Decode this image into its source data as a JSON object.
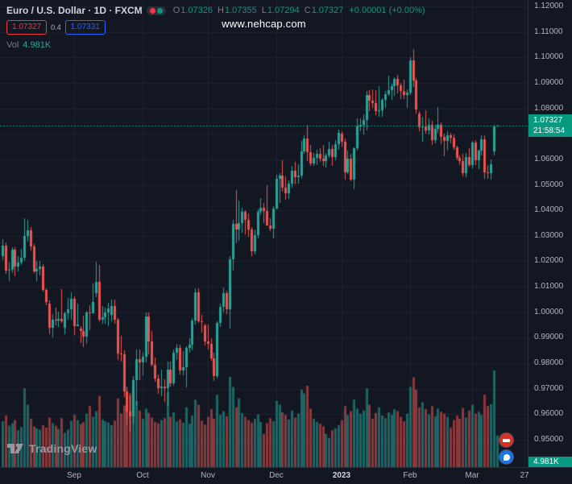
{
  "watermark": "www.nehcap.com",
  "header": {
    "symbol_title": "Euro / U.S. Dollar · 1D · FXCM",
    "ohlc": {
      "open_label": "O",
      "open": "1.07326",
      "high_label": "H",
      "high": "1.07355",
      "low_label": "L",
      "low": "1.07294",
      "close_label": "C",
      "close": "1.07327",
      "change": "+0.00001 (+0.00%)"
    },
    "sell_price": "1.07327",
    "spread": "0.4",
    "buy_price": "1.07331",
    "vol_label": "Vol",
    "vol_value": "4.981K"
  },
  "price_tag": {
    "price": "1.07327",
    "countdown": "21:58:54"
  },
  "volume_tag": "4.981K",
  "logo": {
    "text": "TradingView"
  },
  "colors": {
    "background": "#131722",
    "grid": "#1e2230",
    "up": "#26a69a",
    "down": "#ef5350",
    "vol_up": "rgba(38,166,154,0.55)",
    "vol_down": "rgba(239,83,80,0.55)",
    "accent_green": "#089981",
    "sell_red": "#f23645",
    "buy_blue": "#2962ff",
    "axis_text": "#b2b5be",
    "muted_text": "#787b86",
    "title_text": "#d1d4dc"
  },
  "price_axis_labels": [
    "1.12000",
    "1.11000",
    "1.10000",
    "1.09000",
    "1.08000",
    "1.07000",
    "1.06000",
    "1.05000",
    "1.04000",
    "1.03000",
    "1.02000",
    "1.01000",
    "1.00000",
    "0.99000",
    "0.98000",
    "0.97000",
    "0.96000",
    "0.95000"
  ],
  "time_axis": [
    {
      "label": "Sep",
      "i": 23
    },
    {
      "label": "Oct",
      "i": 45
    },
    {
      "label": "Nov",
      "i": 66
    },
    {
      "label": "Dec",
      "i": 88
    },
    {
      "label": "2023",
      "i": 109,
      "major": true
    },
    {
      "label": "Feb",
      "i": 131
    },
    {
      "label": "Mar",
      "i": 151
    },
    {
      "label": "27",
      "i": 168
    }
  ],
  "chart_data": {
    "type": "candlestick",
    "title": "Euro / U.S. Dollar",
    "interval": "1D",
    "exchange": "FXCM",
    "last_price": 1.07327,
    "visible_price_range": [
      0.945,
      1.125
    ],
    "volume_unit": "K",
    "candle_fields": [
      "open",
      "high",
      "low",
      "close",
      "volume_k"
    ],
    "candles": [
      [
        1.022,
        1.0288,
        1.0205,
        1.026,
        7.2
      ],
      [
        1.026,
        1.0274,
        1.0152,
        1.0165,
        8.1
      ],
      [
        1.0165,
        1.0195,
        1.0123,
        1.0166,
        6.5
      ],
      [
        1.0166,
        1.0255,
        1.0154,
        1.0246,
        6.9
      ],
      [
        1.0246,
        1.0254,
        1.0141,
        1.018,
        7.4
      ],
      [
        1.018,
        1.0221,
        1.0161,
        1.0194,
        5.8
      ],
      [
        1.0194,
        1.0249,
        1.0187,
        1.0213,
        6.3
      ],
      [
        1.0213,
        1.0369,
        1.0202,
        1.0298,
        12.4
      ],
      [
        1.0298,
        1.0364,
        1.0276,
        1.032,
        9.8
      ],
      [
        1.032,
        1.0333,
        1.0241,
        1.0258,
        7.6
      ],
      [
        1.0258,
        1.0268,
        1.0153,
        1.016,
        6.4
      ],
      [
        1.016,
        1.0202,
        1.0124,
        1.0171,
        6.1
      ],
      [
        1.0171,
        1.0203,
        1.0146,
        1.018,
        5.9
      ],
      [
        1.018,
        1.019,
        1.008,
        1.0088,
        6.6
      ],
      [
        1.0088,
        1.0095,
        1.0027,
        1.004,
        6.2
      ],
      [
        1.0034,
        1.0046,
        0.9914,
        0.994,
        7.8
      ],
      [
        0.994,
        0.9994,
        0.9901,
        0.997,
        6.9
      ],
      [
        0.997,
        1.0019,
        0.9948,
        0.9967,
        6.5
      ],
      [
        0.9967,
        1.0003,
        0.9943,
        0.9975,
        6.0
      ],
      [
        0.9975,
        1.009,
        0.9957,
        0.9964,
        7.7
      ],
      [
        0.9938,
        1.0003,
        0.9913,
        0.9997,
        5.4
      ],
      [
        0.9997,
        1.0055,
        0.9972,
        1.0012,
        5.9
      ],
      [
        1.0012,
        1.0079,
        0.9972,
        1.0054,
        7.3
      ],
      [
        1.0054,
        1.0061,
        0.991,
        0.9945,
        8.2
      ],
      [
        0.9945,
        1.0033,
        0.9944,
        0.9952,
        7.4
      ],
      [
        0.9936,
        0.9947,
        0.9878,
        0.9928,
        6.8
      ],
      [
        0.9928,
        0.9987,
        0.9864,
        0.9903,
        7.1
      ],
      [
        0.9903,
        1.0005,
        0.9875,
        0.9998,
        8.4
      ],
      [
        0.9998,
        1.0029,
        0.993,
        0.9996,
        9.6
      ],
      [
        0.9996,
        1.0114,
        0.9995,
        1.004,
        7.9
      ],
      [
        1.0076,
        1.0198,
        1.0059,
        1.012,
        8.8
      ],
      [
        1.012,
        1.0187,
        0.9963,
        0.997,
        11.2
      ],
      [
        0.997,
        1.0023,
        0.9955,
        0.9979,
        7.5
      ],
      [
        0.9979,
        1.0018,
        0.9954,
        1.0,
        7.2
      ],
      [
        1.0,
        1.0036,
        0.9945,
        1.0016,
        7.0
      ],
      [
        0.999,
        1.005,
        0.9965,
        1.0023,
        6.6
      ],
      [
        1.0023,
        1.0051,
        0.9955,
        0.997,
        7.3
      ],
      [
        0.997,
        0.9976,
        0.9813,
        0.9838,
        10.8
      ],
      [
        0.9838,
        0.9908,
        0.9807,
        0.9835,
        8.4
      ],
      [
        0.9835,
        0.9852,
        0.9667,
        0.969,
        9.7
      ],
      [
        0.969,
        0.9709,
        0.9554,
        0.961,
        10.2
      ],
      [
        0.961,
        0.967,
        0.9536,
        0.9593,
        11.6
      ],
      [
        0.9593,
        0.975,
        0.9563,
        0.9735,
        12.8
      ],
      [
        0.9735,
        0.9853,
        0.9634,
        0.9815,
        10.4
      ],
      [
        0.9815,
        0.9853,
        0.9733,
        0.9802,
        8.9
      ],
      [
        0.9802,
        0.9844,
        0.9753,
        0.9826,
        7.6
      ],
      [
        0.9826,
        0.9999,
        0.9803,
        0.9985,
        9.2
      ],
      [
        0.9985,
        0.9999,
        0.9835,
        0.9884,
        8.5
      ],
      [
        0.9884,
        0.9926,
        0.9787,
        0.9794,
        7.8
      ],
      [
        0.9794,
        0.9821,
        0.9726,
        0.974,
        7.1
      ],
      [
        0.974,
        0.9755,
        0.9681,
        0.9703,
        6.9
      ],
      [
        0.9703,
        0.9774,
        0.967,
        0.9707,
        7.4
      ],
      [
        0.9707,
        0.9736,
        0.9649,
        0.9702,
        7.7
      ],
      [
        0.9702,
        0.9807,
        0.9632,
        0.9776,
        11.8
      ],
      [
        0.9776,
        0.9807,
        0.9709,
        0.9721,
        7.9
      ],
      [
        0.9721,
        0.9854,
        0.9712,
        0.984,
        8.6
      ],
      [
        0.984,
        0.9875,
        0.9813,
        0.9859,
        7.2
      ],
      [
        0.9859,
        0.9873,
        0.9756,
        0.9773,
        7.5
      ],
      [
        0.9773,
        0.9847,
        0.9754,
        0.9785,
        7.0
      ],
      [
        0.9785,
        0.9867,
        0.9706,
        0.9861,
        9.4
      ],
      [
        0.9861,
        0.9899,
        0.9842,
        0.9874,
        6.8
      ],
      [
        0.9874,
        0.9976,
        0.985,
        0.9968,
        8.1
      ],
      [
        0.9968,
        1.0093,
        0.9951,
        1.0079,
        10.6
      ],
      [
        1.0079,
        1.0094,
        0.9959,
        0.9966,
        9.8
      ],
      [
        0.9966,
        0.9991,
        0.9921,
        0.9965,
        7.3
      ],
      [
        0.9948,
        0.9954,
        0.9871,
        0.9884,
        6.7
      ],
      [
        0.9884,
        0.9953,
        0.9853,
        0.9877,
        7.9
      ],
      [
        0.9877,
        0.9898,
        0.9811,
        0.9818,
        9.1
      ],
      [
        0.9818,
        0.984,
        0.973,
        0.9749,
        7.6
      ],
      [
        0.9749,
        0.9966,
        0.9741,
        0.9958,
        11.4
      ],
      [
        0.9958,
        1.0034,
        0.9942,
        1.002,
        8.2
      ],
      [
        1.002,
        1.0096,
        0.9999,
        1.0074,
        8.8
      ],
      [
        1.0074,
        1.0086,
        0.9992,
        1.0012,
        8.0
      ],
      [
        1.0012,
        1.0222,
        0.9936,
        1.0209,
        14.2
      ],
      [
        1.0209,
        1.0364,
        1.0163,
        1.0348,
        12.6
      ],
      [
        1.0348,
        1.0481,
        1.0271,
        1.0325,
        9.4
      ],
      [
        1.0325,
        1.0439,
        1.028,
        1.035,
        10.8
      ],
      [
        1.035,
        1.041,
        1.0312,
        1.0393,
        8.5
      ],
      [
        1.0393,
        1.0401,
        1.0305,
        1.0362,
        7.9
      ],
      [
        1.0362,
        1.0388,
        1.0297,
        1.0326,
        7.4
      ],
      [
        1.0326,
        1.0334,
        1.0222,
        1.0239,
        7.0
      ],
      [
        1.0239,
        1.0324,
        1.0226,
        1.0303,
        7.6
      ],
      [
        1.0303,
        1.0405,
        1.029,
        1.0395,
        8.3
      ],
      [
        1.0395,
        1.0448,
        1.0382,
        1.041,
        7.1
      ],
      [
        1.041,
        1.043,
        1.0351,
        1.0397,
        5.2
      ],
      [
        1.0397,
        1.0497,
        1.034,
        1.0342,
        6.9
      ],
      [
        1.0342,
        1.0369,
        1.0319,
        1.0328,
        7.7
      ],
      [
        1.0328,
        1.0416,
        1.029,
        1.0406,
        7.2
      ],
      [
        1.0406,
        1.0539,
        1.0403,
        1.0525,
        10.4
      ],
      [
        1.0525,
        1.0545,
        1.0428,
        1.0535,
        9.8
      ],
      [
        1.0535,
        1.0595,
        1.0474,
        1.049,
        8.6
      ],
      [
        1.049,
        1.0532,
        1.0443,
        1.0468,
        8.2
      ],
      [
        1.0468,
        1.0519,
        1.0444,
        1.0506,
        7.5
      ],
      [
        1.0506,
        1.0573,
        1.0489,
        1.0556,
        8.9
      ],
      [
        1.0556,
        1.0589,
        1.0503,
        1.0531,
        7.8
      ],
      [
        1.0531,
        1.058,
        1.0505,
        1.0538,
        8.4
      ],
      [
        1.0538,
        1.0673,
        1.0528,
        1.0632,
        12.2
      ],
      [
        1.0632,
        1.0695,
        1.0622,
        1.0682,
        11.6
      ],
      [
        1.0682,
        1.0737,
        1.0594,
        1.0627,
        12.8
      ],
      [
        1.0627,
        1.0658,
        1.0575,
        1.0585,
        9.2
      ],
      [
        1.0585,
        1.0625,
        1.0574,
        1.0607,
        7.6
      ],
      [
        1.0607,
        1.0636,
        1.0576,
        1.0622,
        7.1
      ],
      [
        1.0622,
        1.0645,
        1.059,
        1.0604,
        6.8
      ],
      [
        1.0604,
        1.0656,
        1.0573,
        1.0594,
        6.4
      ],
      [
        1.0594,
        1.0625,
        1.0567,
        1.0614,
        5.2
      ],
      [
        1.0614,
        1.067,
        1.0607,
        1.064,
        4.6
      ],
      [
        1.064,
        1.0656,
        1.0575,
        1.061,
        5.8
      ],
      [
        1.061,
        1.0675,
        1.0598,
        1.0661,
        6.1
      ],
      [
        1.0661,
        1.0715,
        1.0638,
        1.0705,
        6.6
      ],
      [
        1.07,
        1.071,
        1.065,
        1.0668,
        7.4
      ],
      [
        1.0668,
        1.0683,
        1.052,
        1.055,
        9.6
      ],
      [
        1.055,
        1.0635,
        1.0542,
        1.0603,
        8.2
      ],
      [
        1.0603,
        1.0621,
        1.0515,
        1.0522,
        8.8
      ],
      [
        1.0522,
        1.0648,
        1.0483,
        1.0645,
        10.6
      ],
      [
        1.0645,
        1.076,
        1.0634,
        1.073,
        9.2
      ],
      [
        1.073,
        1.0761,
        1.0711,
        1.0735,
        8.4
      ],
      [
        1.0735,
        1.0776,
        1.0698,
        1.0756,
        8.9
      ],
      [
        1.0756,
        1.0868,
        1.0714,
        1.0852,
        12.4
      ],
      [
        1.0852,
        1.087,
        1.0788,
        1.083,
        9.8
      ],
      [
        1.083,
        1.0874,
        1.0801,
        1.0822,
        7.6
      ],
      [
        1.0822,
        1.087,
        1.0775,
        1.0789,
        8.5
      ],
      [
        1.0789,
        1.0887,
        1.0766,
        1.0793,
        9.4
      ],
      [
        1.0793,
        1.084,
        1.0766,
        1.0832,
        8.1
      ],
      [
        1.0832,
        1.0868,
        1.0802,
        1.0856,
        7.7
      ],
      [
        1.0856,
        1.0927,
        1.0848,
        1.0871,
        8.6
      ],
      [
        1.0871,
        1.0898,
        1.0835,
        1.0887,
        8.2
      ],
      [
        1.0887,
        1.0923,
        1.085,
        1.0916,
        9.1
      ],
      [
        1.0916,
        1.093,
        1.0858,
        1.0891,
        8.8
      ],
      [
        1.0891,
        1.09,
        1.0837,
        1.0868,
        7.9
      ],
      [
        1.0868,
        1.0913,
        1.0838,
        1.0851,
        7.2
      ],
      [
        1.0851,
        1.0875,
        1.0802,
        1.0863,
        8.4
      ],
      [
        1.0863,
        1.1001,
        1.0852,
        1.0989,
        12.6
      ],
      [
        1.0989,
        1.1033,
        1.0885,
        1.0909,
        14.1
      ],
      [
        1.0909,
        1.0918,
        1.0781,
        1.0795,
        12.2
      ],
      [
        1.078,
        1.0788,
        1.0709,
        1.0725,
        9.4
      ],
      [
        1.0725,
        1.0766,
        1.0669,
        1.0728,
        10.2
      ],
      [
        1.0728,
        1.0791,
        1.0701,
        1.0713,
        9.1
      ],
      [
        1.0713,
        1.0761,
        1.0697,
        1.0736,
        8.3
      ],
      [
        1.0736,
        1.0752,
        1.0656,
        1.0676,
        9.6
      ],
      [
        1.0676,
        1.0736,
        1.0662,
        1.072,
        8.0
      ],
      [
        1.072,
        1.0804,
        1.0705,
        1.0736,
        9.2
      ],
      [
        1.0736,
        1.0744,
        1.0661,
        1.0688,
        8.7
      ],
      [
        1.0688,
        1.07,
        1.0612,
        1.0672,
        8.4
      ],
      [
        1.0672,
        1.071,
        1.0633,
        1.0695,
        7.9
      ],
      [
        1.0695,
        1.0705,
        1.0662,
        1.0686,
        6.2
      ],
      [
        1.0686,
        1.0697,
        1.0636,
        1.0647,
        7.4
      ],
      [
        1.0647,
        1.0654,
        1.0598,
        1.0605,
        8.1
      ],
      [
        1.0605,
        1.0615,
        1.0577,
        1.0594,
        7.6
      ],
      [
        1.0594,
        1.0621,
        1.0533,
        1.0546,
        9.3
      ],
      [
        1.0546,
        1.0626,
        1.0531,
        1.0609,
        7.8
      ],
      [
        1.0609,
        1.0645,
        1.057,
        1.0577,
        8.9
      ],
      [
        1.0577,
        1.0673,
        1.0565,
        1.0666,
        9.8
      ],
      [
        1.0666,
        1.0674,
        1.0577,
        1.0598,
        8.4
      ],
      [
        1.0598,
        1.0639,
        1.0561,
        1.0634,
        8.7
      ],
      [
        1.0634,
        1.0694,
        1.0615,
        1.068,
        8.2
      ],
      [
        1.068,
        1.0695,
        1.0525,
        1.0548,
        11.4
      ],
      [
        1.0548,
        1.0576,
        1.0523,
        1.0546,
        9.6
      ],
      [
        1.0546,
        1.0601,
        1.0522,
        1.0582,
        9.9
      ],
      [
        1.0631,
        1.0737,
        1.0616,
        1.0728,
        15.2
      ],
      [
        1.07326,
        1.07355,
        1.07294,
        1.07327,
        4.981
      ]
    ]
  }
}
